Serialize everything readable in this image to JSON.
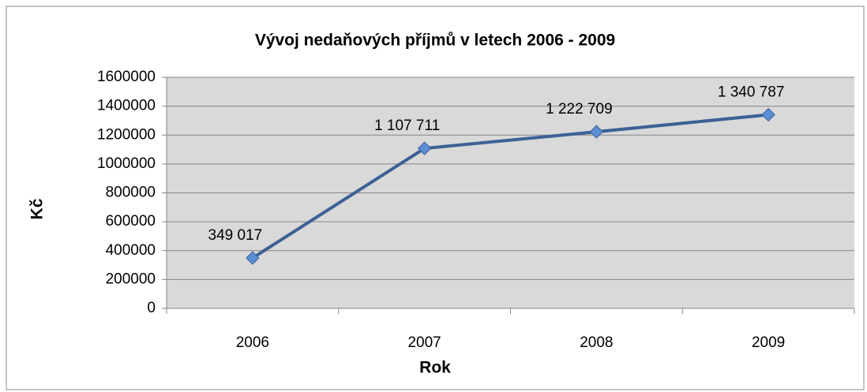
{
  "chart_data": {
    "type": "line",
    "title": "Vývoj nedaňových příjmů v letech 2006 - 2009",
    "x_label": "Rok",
    "y_label": "Kč",
    "categories": [
      "2006",
      "2007",
      "2008",
      "2009"
    ],
    "series": [
      {
        "name": "Kč",
        "color": "#3c6196",
        "marker_color": "#5b8ed6",
        "values": [
          349017,
          1107711,
          1222709,
          1340787
        ],
        "value_labels": [
          "349 017",
          "1 107 711",
          "1 222 709",
          "1 340 787"
        ]
      }
    ],
    "ylim": [
      0,
      1600000
    ],
    "yticks": [
      0,
      200000,
      400000,
      600000,
      800000,
      1000000,
      1200000,
      1400000,
      1600000
    ],
    "grid": true
  }
}
